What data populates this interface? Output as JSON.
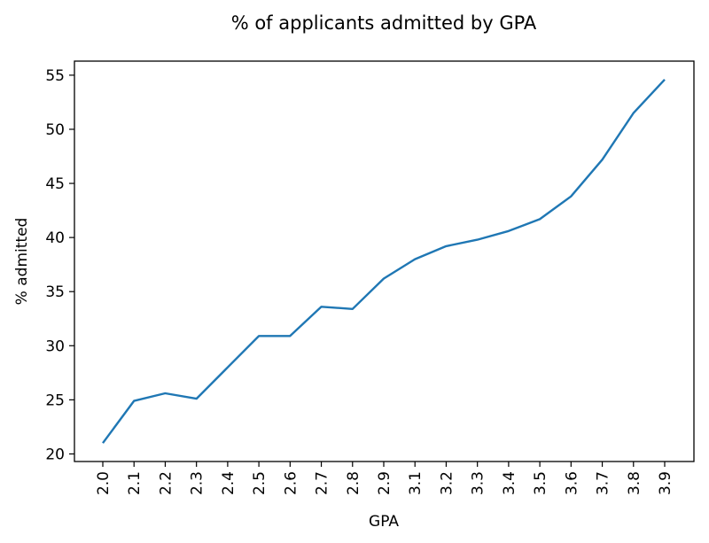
{
  "chart_data": {
    "type": "line",
    "title": "% of applicants admitted by GPA",
    "xlabel": "GPA",
    "ylabel": "% admitted",
    "categories": [
      "2.0",
      "2.1",
      "2.2",
      "2.3",
      "2.4",
      "2.5",
      "2.6",
      "2.7",
      "2.8",
      "2.9",
      "3.1",
      "3.2",
      "3.3",
      "3.4",
      "3.5",
      "3.6",
      "3.7",
      "3.8",
      "3.9"
    ],
    "series": [
      {
        "values": [
          21.0,
          24.9,
          25.6,
          25.1,
          28.0,
          30.9,
          30.9,
          33.6,
          33.4,
          36.2,
          38.0,
          39.2,
          39.8,
          40.6,
          41.7,
          43.8,
          47.2,
          51.5,
          54.6
        ],
        "color": "#1f77b4"
      }
    ],
    "yticks": [
      20,
      25,
      30,
      35,
      40,
      45,
      50,
      55
    ],
    "ylim": [
      19.3,
      56.3
    ],
    "grid": false,
    "legend": "none"
  }
}
